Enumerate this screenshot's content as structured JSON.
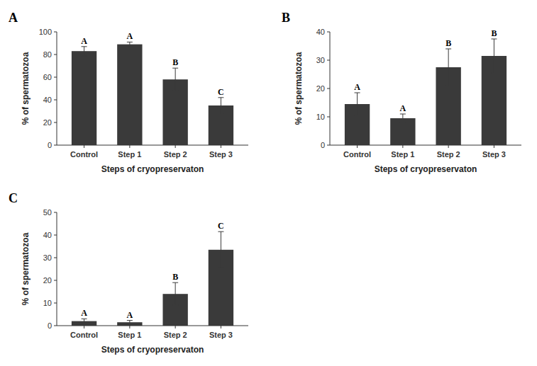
{
  "chart_data": [
    {
      "type": "bar",
      "title": "A",
      "categories": [
        "Control",
        "Step 1",
        "Step 2",
        "Step 3"
      ],
      "values": [
        83,
        89,
        58,
        35
      ],
      "errors": [
        4,
        2,
        10,
        7
      ],
      "annotations": [
        "A",
        "A",
        "B",
        "C"
      ],
      "color": "#3a3a3a",
      "xlabel": "Steps of cryopreservaton",
      "ylabel": "% of spermatozoa",
      "ylim": [
        0,
        100
      ],
      "yticks": [
        0,
        20,
        40,
        60,
        80,
        100
      ],
      "grid": false
    },
    {
      "type": "bar",
      "title": "B",
      "categories": [
        "Control",
        "Step 1",
        "Step 2",
        "Step 3"
      ],
      "values": [
        14.5,
        9.5,
        27.5,
        31.5
      ],
      "errors": [
        4,
        1.5,
        6.5,
        6
      ],
      "annotations": [
        "A",
        "A",
        "B",
        "B"
      ],
      "color": "#3a3a3a",
      "xlabel": "Steps of cryopreservaton",
      "ylabel": "% of spermatozoa",
      "ylim": [
        0,
        40
      ],
      "yticks": [
        0,
        10,
        20,
        30,
        40
      ],
      "grid": false
    },
    {
      "type": "bar",
      "title": "C",
      "categories": [
        "Control",
        "Step 1",
        "Step 2",
        "Step 3"
      ],
      "values": [
        2,
        1.5,
        14,
        33.5
      ],
      "errors": [
        1,
        0.8,
        5,
        8
      ],
      "annotations": [
        "A",
        "A",
        "B",
        "C"
      ],
      "color": "#3a3a3a",
      "xlabel": "Steps of cryopreservaton",
      "ylabel": "% of spermatozoa",
      "ylim": [
        0,
        50
      ],
      "yticks": [
        0,
        10,
        20,
        30,
        40,
        50
      ],
      "grid": false
    }
  ]
}
